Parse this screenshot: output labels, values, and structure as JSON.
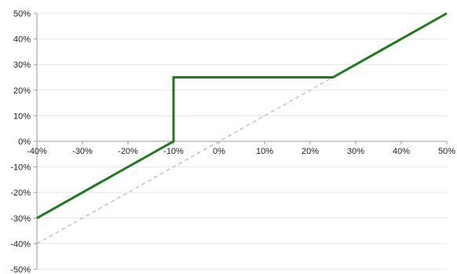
{
  "chart_data": {
    "type": "line",
    "title": "",
    "xlabel": "",
    "ylabel": "",
    "xlim": [
      -40,
      50
    ],
    "ylim": [
      -50,
      50
    ],
    "x_ticks": [
      -40,
      -30,
      -20,
      -10,
      0,
      10,
      20,
      30,
      40,
      50
    ],
    "y_ticks": [
      -50,
      -40,
      -30,
      -20,
      -10,
      0,
      10,
      20,
      30,
      40,
      50
    ],
    "x_tick_labels": [
      "-40%",
      "-30%",
      "-20%",
      "-10%",
      "0%",
      "10%",
      "20%",
      "30%",
      "40%",
      "50%"
    ],
    "y_tick_labels": [
      "-50%",
      "-40%",
      "-30%",
      "-20%",
      "-10%",
      "0%",
      "10%",
      "20%",
      "30%",
      "40%",
      "50%"
    ],
    "grid": true,
    "legend": "none",
    "series": [
      {
        "style": "solid",
        "color": "#1e7a1e",
        "points": [
          [
            -40,
            -30
          ],
          [
            -10,
            0
          ],
          [
            -10,
            25
          ],
          [
            25,
            25
          ],
          [
            50,
            50
          ]
        ]
      },
      {
        "style": "dashed",
        "color": "#bbbbbb",
        "points": [
          [
            -40,
            -40
          ],
          [
            25,
            25
          ]
        ]
      }
    ]
  }
}
